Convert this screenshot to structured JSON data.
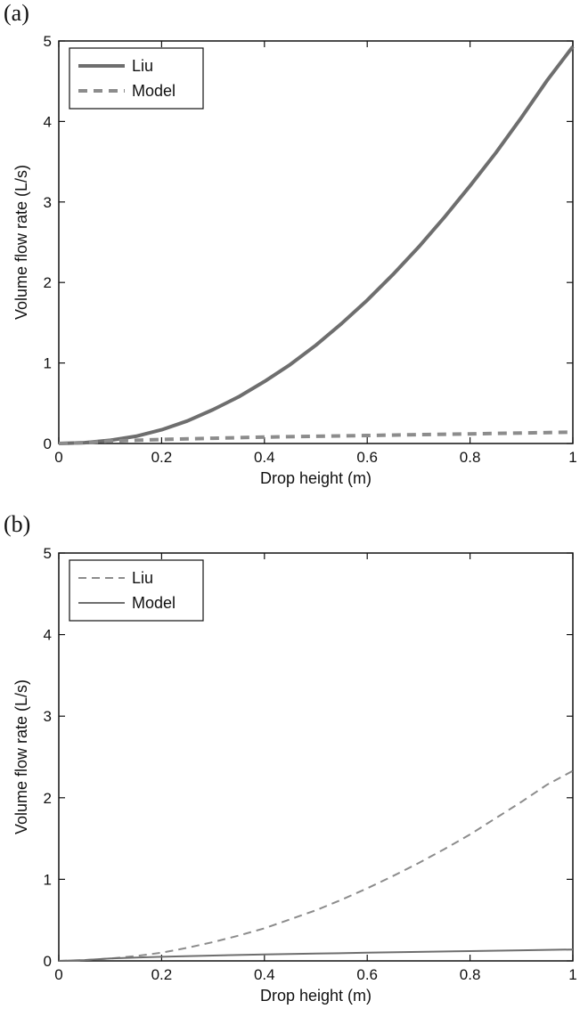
{
  "panels": [
    {
      "label": "(a)",
      "chart_data": {
        "type": "line",
        "xlabel": "Drop height (m)",
        "ylabel": "Volume flow rate (L/s)",
        "xlim": [
          0,
          1
        ],
        "ylim": [
          0,
          5
        ],
        "xticks": [
          "0",
          "0.2",
          "0.4",
          "0.6",
          "0.8",
          "1"
        ],
        "yticks": [
          "0",
          "1",
          "2",
          "3",
          "4",
          "5"
        ],
        "grid": false,
        "legend_position": "top-left",
        "series": [
          {
            "name": "Liu",
            "style": "solid",
            "color": "#6e6e6e",
            "width": "thick",
            "x": [
              0,
              0.05,
              0.1,
              0.15,
              0.2,
              0.25,
              0.3,
              0.35,
              0.4,
              0.45,
              0.5,
              0.55,
              0.6,
              0.65,
              0.7,
              0.75,
              0.8,
              0.85,
              0.9,
              0.95,
              1.0
            ],
            "y": [
              0,
              0.01,
              0.04,
              0.09,
              0.17,
              0.28,
              0.42,
              0.58,
              0.77,
              0.98,
              1.22,
              1.49,
              1.78,
              2.1,
              2.44,
              2.81,
              3.2,
              3.61,
              4.05,
              4.51,
              4.93
            ]
          },
          {
            "name": "Model",
            "style": "dashed",
            "color": "#8c8c8c",
            "width": "thick",
            "x": [
              0,
              0.05,
              0.1,
              0.15,
              0.2,
              0.3,
              0.4,
              0.5,
              0.6,
              0.7,
              0.8,
              0.9,
              1.0
            ],
            "y": [
              0,
              0.01,
              0.03,
              0.04,
              0.05,
              0.065,
              0.08,
              0.09,
              0.1,
              0.11,
              0.12,
              0.13,
              0.14
            ]
          }
        ]
      }
    },
    {
      "label": "(b)",
      "chart_data": {
        "type": "line",
        "xlabel": "Drop height (m)",
        "ylabel": "Volume flow rate (L/s)",
        "xlim": [
          0,
          1
        ],
        "ylim": [
          0,
          5
        ],
        "xticks": [
          "0",
          "0.2",
          "0.4",
          "0.6",
          "0.8",
          "1"
        ],
        "yticks": [
          "0",
          "1",
          "2",
          "3",
          "4",
          "5"
        ],
        "grid": false,
        "legend_position": "top-left",
        "series": [
          {
            "name": "Liu",
            "style": "dashed",
            "color": "#8c8c8c",
            "width": "thin",
            "x": [
              0,
              0.05,
              0.1,
              0.15,
              0.2,
              0.25,
              0.3,
              0.35,
              0.4,
              0.45,
              0.5,
              0.55,
              0.6,
              0.65,
              0.7,
              0.75,
              0.8,
              0.85,
              0.9,
              0.95,
              1.0
            ],
            "y": [
              0,
              0.01,
              0.03,
              0.06,
              0.1,
              0.16,
              0.23,
              0.31,
              0.4,
              0.51,
              0.62,
              0.75,
              0.89,
              1.04,
              1.2,
              1.37,
              1.55,
              1.75,
              1.95,
              2.16,
              2.33
            ]
          },
          {
            "name": "Model",
            "style": "solid",
            "color": "#6e6e6e",
            "width": "thin",
            "x": [
              0,
              0.05,
              0.1,
              0.15,
              0.2,
              0.3,
              0.4,
              0.5,
              0.6,
              0.7,
              0.8,
              0.9,
              1.0
            ],
            "y": [
              0,
              0.01,
              0.03,
              0.04,
              0.05,
              0.065,
              0.08,
              0.09,
              0.1,
              0.11,
              0.12,
              0.13,
              0.14
            ]
          }
        ]
      }
    }
  ]
}
